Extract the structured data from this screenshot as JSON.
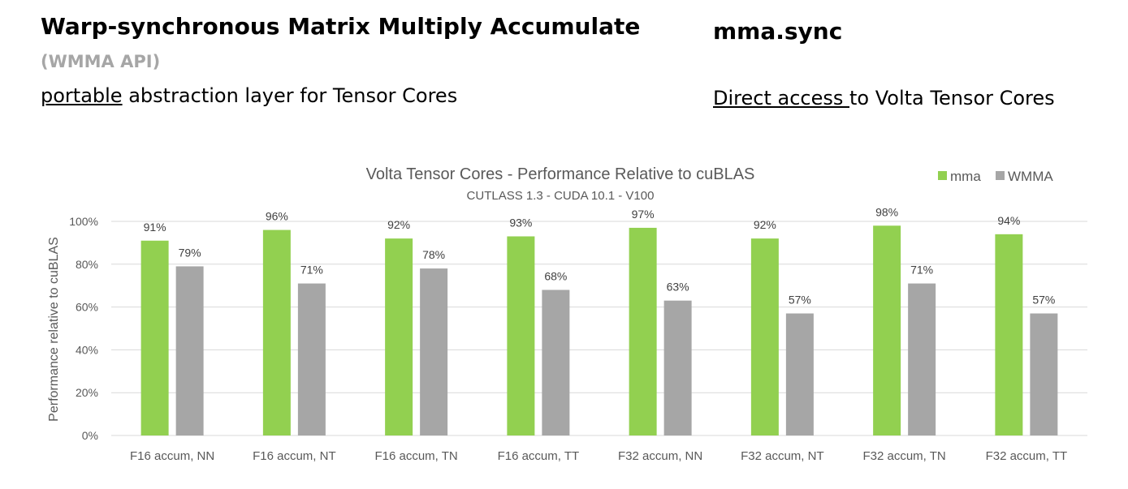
{
  "left": {
    "title": "Warp-synchronous Matrix Multiply Accumulate",
    "subtitle": "(WMMA API)",
    "desc_underlined": "portable",
    "desc_rest": " abstraction layer for Tensor Cores"
  },
  "right": {
    "title": "mma.sync",
    "desc_underlined": "Direct access ",
    "desc_rest": "to Volta Tensor Cores"
  },
  "colors": {
    "mma": "#92d050",
    "wmma": "#a6a6a6",
    "grid": "#d9d9d9",
    "text": "#595959"
  },
  "chart_data": {
    "type": "bar",
    "title": "Volta Tensor Cores - Performance Relative to cuBLAS",
    "subtitle": "CUTLASS 1.3 - CUDA 10.1 - V100",
    "ylabel": "Performance relative to cuBLAS",
    "xlabel": "",
    "ylim": [
      0,
      100
    ],
    "yticks": [
      "0%",
      "20%",
      "40%",
      "60%",
      "80%",
      "100%"
    ],
    "grid": true,
    "legend": "top-right",
    "categories": [
      "F16 accum, NN",
      "F16 accum, NT",
      "F16 accum, TN",
      "F16 accum, TT",
      "F32 accum, NN",
      "F32 accum, NT",
      "F32 accum, TN",
      "F32 accum, TT"
    ],
    "series": [
      {
        "name": "mma",
        "values": [
          91,
          96,
          92,
          93,
          97,
          92,
          98,
          94
        ],
        "labels": [
          "91%",
          "96%",
          "92%",
          "93%",
          "97%",
          "92%",
          "98%",
          "94%"
        ]
      },
      {
        "name": "WMMA",
        "values": [
          79,
          71,
          78,
          68,
          63,
          57,
          71,
          57
        ],
        "labels": [
          "79%",
          "71%",
          "78%",
          "68%",
          "63%",
          "57%",
          "71%",
          "57%"
        ]
      }
    ]
  }
}
